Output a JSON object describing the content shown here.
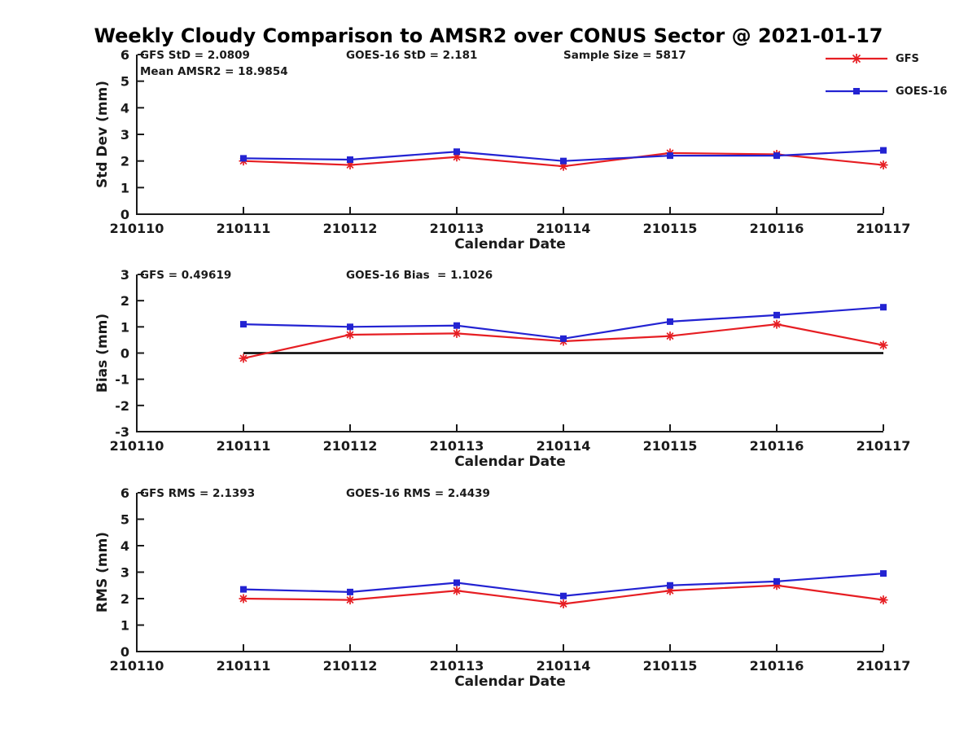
{
  "title": "Weekly Cloudy Comparison to AMSR2 over CONUS Sector @ 2021-01-17",
  "colors": {
    "gfs": "#e61e23",
    "goes16": "#2323d2",
    "axis": "#1a1a1a",
    "text": "#1a1a1a",
    "zero_line": "#000000",
    "background": "#ffffff"
  },
  "legend": {
    "position": "top-right",
    "items": [
      {
        "label": "GFS",
        "color_key": "gfs",
        "marker": "asterisk"
      },
      {
        "label": "GOES-16",
        "color_key": "goes16",
        "marker": "square"
      }
    ]
  },
  "chart_data": [
    {
      "name": "stddev",
      "type": "line",
      "title": "",
      "ylabel": "Std Dev (mm)",
      "xlabel": "Calendar Date",
      "categories": [
        "210110",
        "210111",
        "210112",
        "210113",
        "210114",
        "210115",
        "210116",
        "210117"
      ],
      "ylim": [
        0,
        6
      ],
      "yticks": [
        0,
        1,
        2,
        3,
        4,
        5,
        6
      ],
      "grid": false,
      "zero_line": false,
      "annotations": [
        {
          "text": "GFS StD = 2.0809",
          "col": 0,
          "row": 0
        },
        {
          "text": "Mean AMSR2 = 18.9854",
          "col": 0,
          "row": 1
        },
        {
          "text": "GOES-16 StD = 2.181",
          "col": 1,
          "row": 0
        },
        {
          "text": "Sample Size = 5817",
          "col": 2,
          "row": 0
        }
      ],
      "series": [
        {
          "name": "GFS",
          "color_key": "gfs",
          "marker": "asterisk",
          "x": [
            "210111",
            "210112",
            "210113",
            "210114",
            "210115",
            "210116",
            "210117"
          ],
          "values": [
            2.0,
            1.85,
            2.15,
            1.8,
            2.3,
            2.25,
            1.85
          ]
        },
        {
          "name": "GOES-16",
          "color_key": "goes16",
          "marker": "square",
          "x": [
            "210111",
            "210112",
            "210113",
            "210114",
            "210115",
            "210116",
            "210117"
          ],
          "values": [
            2.1,
            2.05,
            2.35,
            2.0,
            2.2,
            2.2,
            2.4
          ]
        }
      ]
    },
    {
      "name": "bias",
      "type": "line",
      "title": "",
      "ylabel": "Bias (mm)",
      "xlabel": "Calendar Date",
      "categories": [
        "210110",
        "210111",
        "210112",
        "210113",
        "210114",
        "210115",
        "210116",
        "210117"
      ],
      "ylim": [
        -3,
        3
      ],
      "yticks": [
        -3,
        -2,
        -1,
        0,
        1,
        2,
        3
      ],
      "grid": false,
      "zero_line": true,
      "annotations": [
        {
          "text": "GFS = 0.49619",
          "col": 0,
          "row": 0
        },
        {
          "text": "GOES-16 Bias  = 1.1026",
          "col": 1,
          "row": 0
        }
      ],
      "series": [
        {
          "name": "GFS",
          "color_key": "gfs",
          "marker": "asterisk",
          "x": [
            "210111",
            "210112",
            "210113",
            "210114",
            "210115",
            "210116",
            "210117"
          ],
          "values": [
            -0.2,
            0.7,
            0.75,
            0.45,
            0.65,
            1.1,
            0.3
          ]
        },
        {
          "name": "GOES-16",
          "color_key": "goes16",
          "marker": "square",
          "x": [
            "210111",
            "210112",
            "210113",
            "210114",
            "210115",
            "210116",
            "210117"
          ],
          "values": [
            1.1,
            1.0,
            1.05,
            0.55,
            1.2,
            1.45,
            1.75
          ]
        }
      ]
    },
    {
      "name": "rms",
      "type": "line",
      "title": "",
      "ylabel": "RMS (mm)",
      "xlabel": "Calendar Date",
      "categories": [
        "210110",
        "210111",
        "210112",
        "210113",
        "210114",
        "210115",
        "210116",
        "210117"
      ],
      "ylim": [
        0,
        6
      ],
      "yticks": [
        0,
        1,
        2,
        3,
        4,
        5,
        6
      ],
      "grid": false,
      "zero_line": false,
      "annotations": [
        {
          "text": "GFS RMS = 2.1393",
          "col": 0,
          "row": 0
        },
        {
          "text": "GOES-16 RMS = 2.4439",
          "col": 1,
          "row": 0
        }
      ],
      "series": [
        {
          "name": "GFS",
          "color_key": "gfs",
          "marker": "asterisk",
          "x": [
            "210111",
            "210112",
            "210113",
            "210114",
            "210115",
            "210116",
            "210117"
          ],
          "values": [
            2.0,
            1.95,
            2.3,
            1.8,
            2.3,
            2.5,
            1.95
          ]
        },
        {
          "name": "GOES-16",
          "color_key": "goes16",
          "marker": "square",
          "x": [
            "210111",
            "210112",
            "210113",
            "210114",
            "210115",
            "210116",
            "210117"
          ],
          "values": [
            2.35,
            2.25,
            2.6,
            2.1,
            2.5,
            2.65,
            2.95
          ]
        }
      ]
    }
  ]
}
